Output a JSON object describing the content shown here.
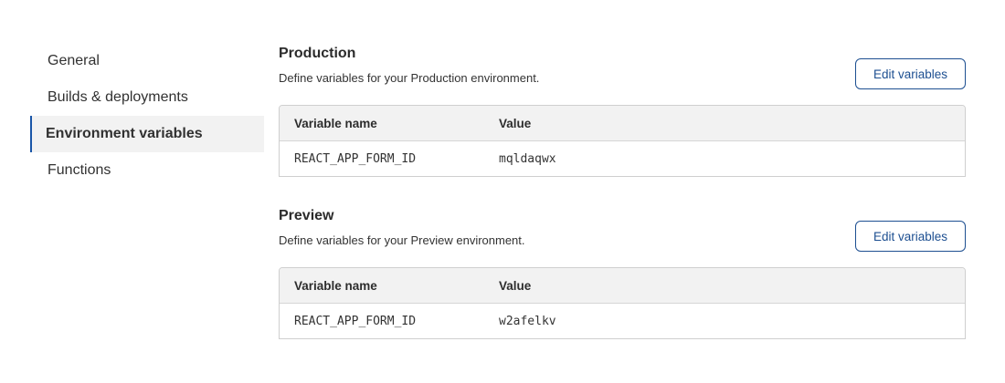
{
  "sidebar": {
    "items": [
      {
        "label": "General",
        "active": false
      },
      {
        "label": "Builds & deployments",
        "active": false
      },
      {
        "label": "Environment variables",
        "active": true
      },
      {
        "label": "Functions",
        "active": false
      }
    ]
  },
  "sections": {
    "production": {
      "title": "Production",
      "description": "Define variables for your Production environment.",
      "edit_label": "Edit variables",
      "columns": [
        "Variable name",
        "Value"
      ],
      "rows": [
        {
          "name": "REACT_APP_FORM_ID",
          "value": "mqldaqwx"
        }
      ]
    },
    "preview": {
      "title": "Preview",
      "description": "Define variables for your Preview environment.",
      "edit_label": "Edit variables",
      "columns": [
        "Variable name",
        "Value"
      ],
      "rows": [
        {
          "name": "REACT_APP_FORM_ID",
          "value": "w2afelkv"
        }
      ]
    }
  },
  "colors": {
    "accent": "#1d4f91",
    "active_bg": "#f2f2f2",
    "active_border": "#1a56a8"
  }
}
